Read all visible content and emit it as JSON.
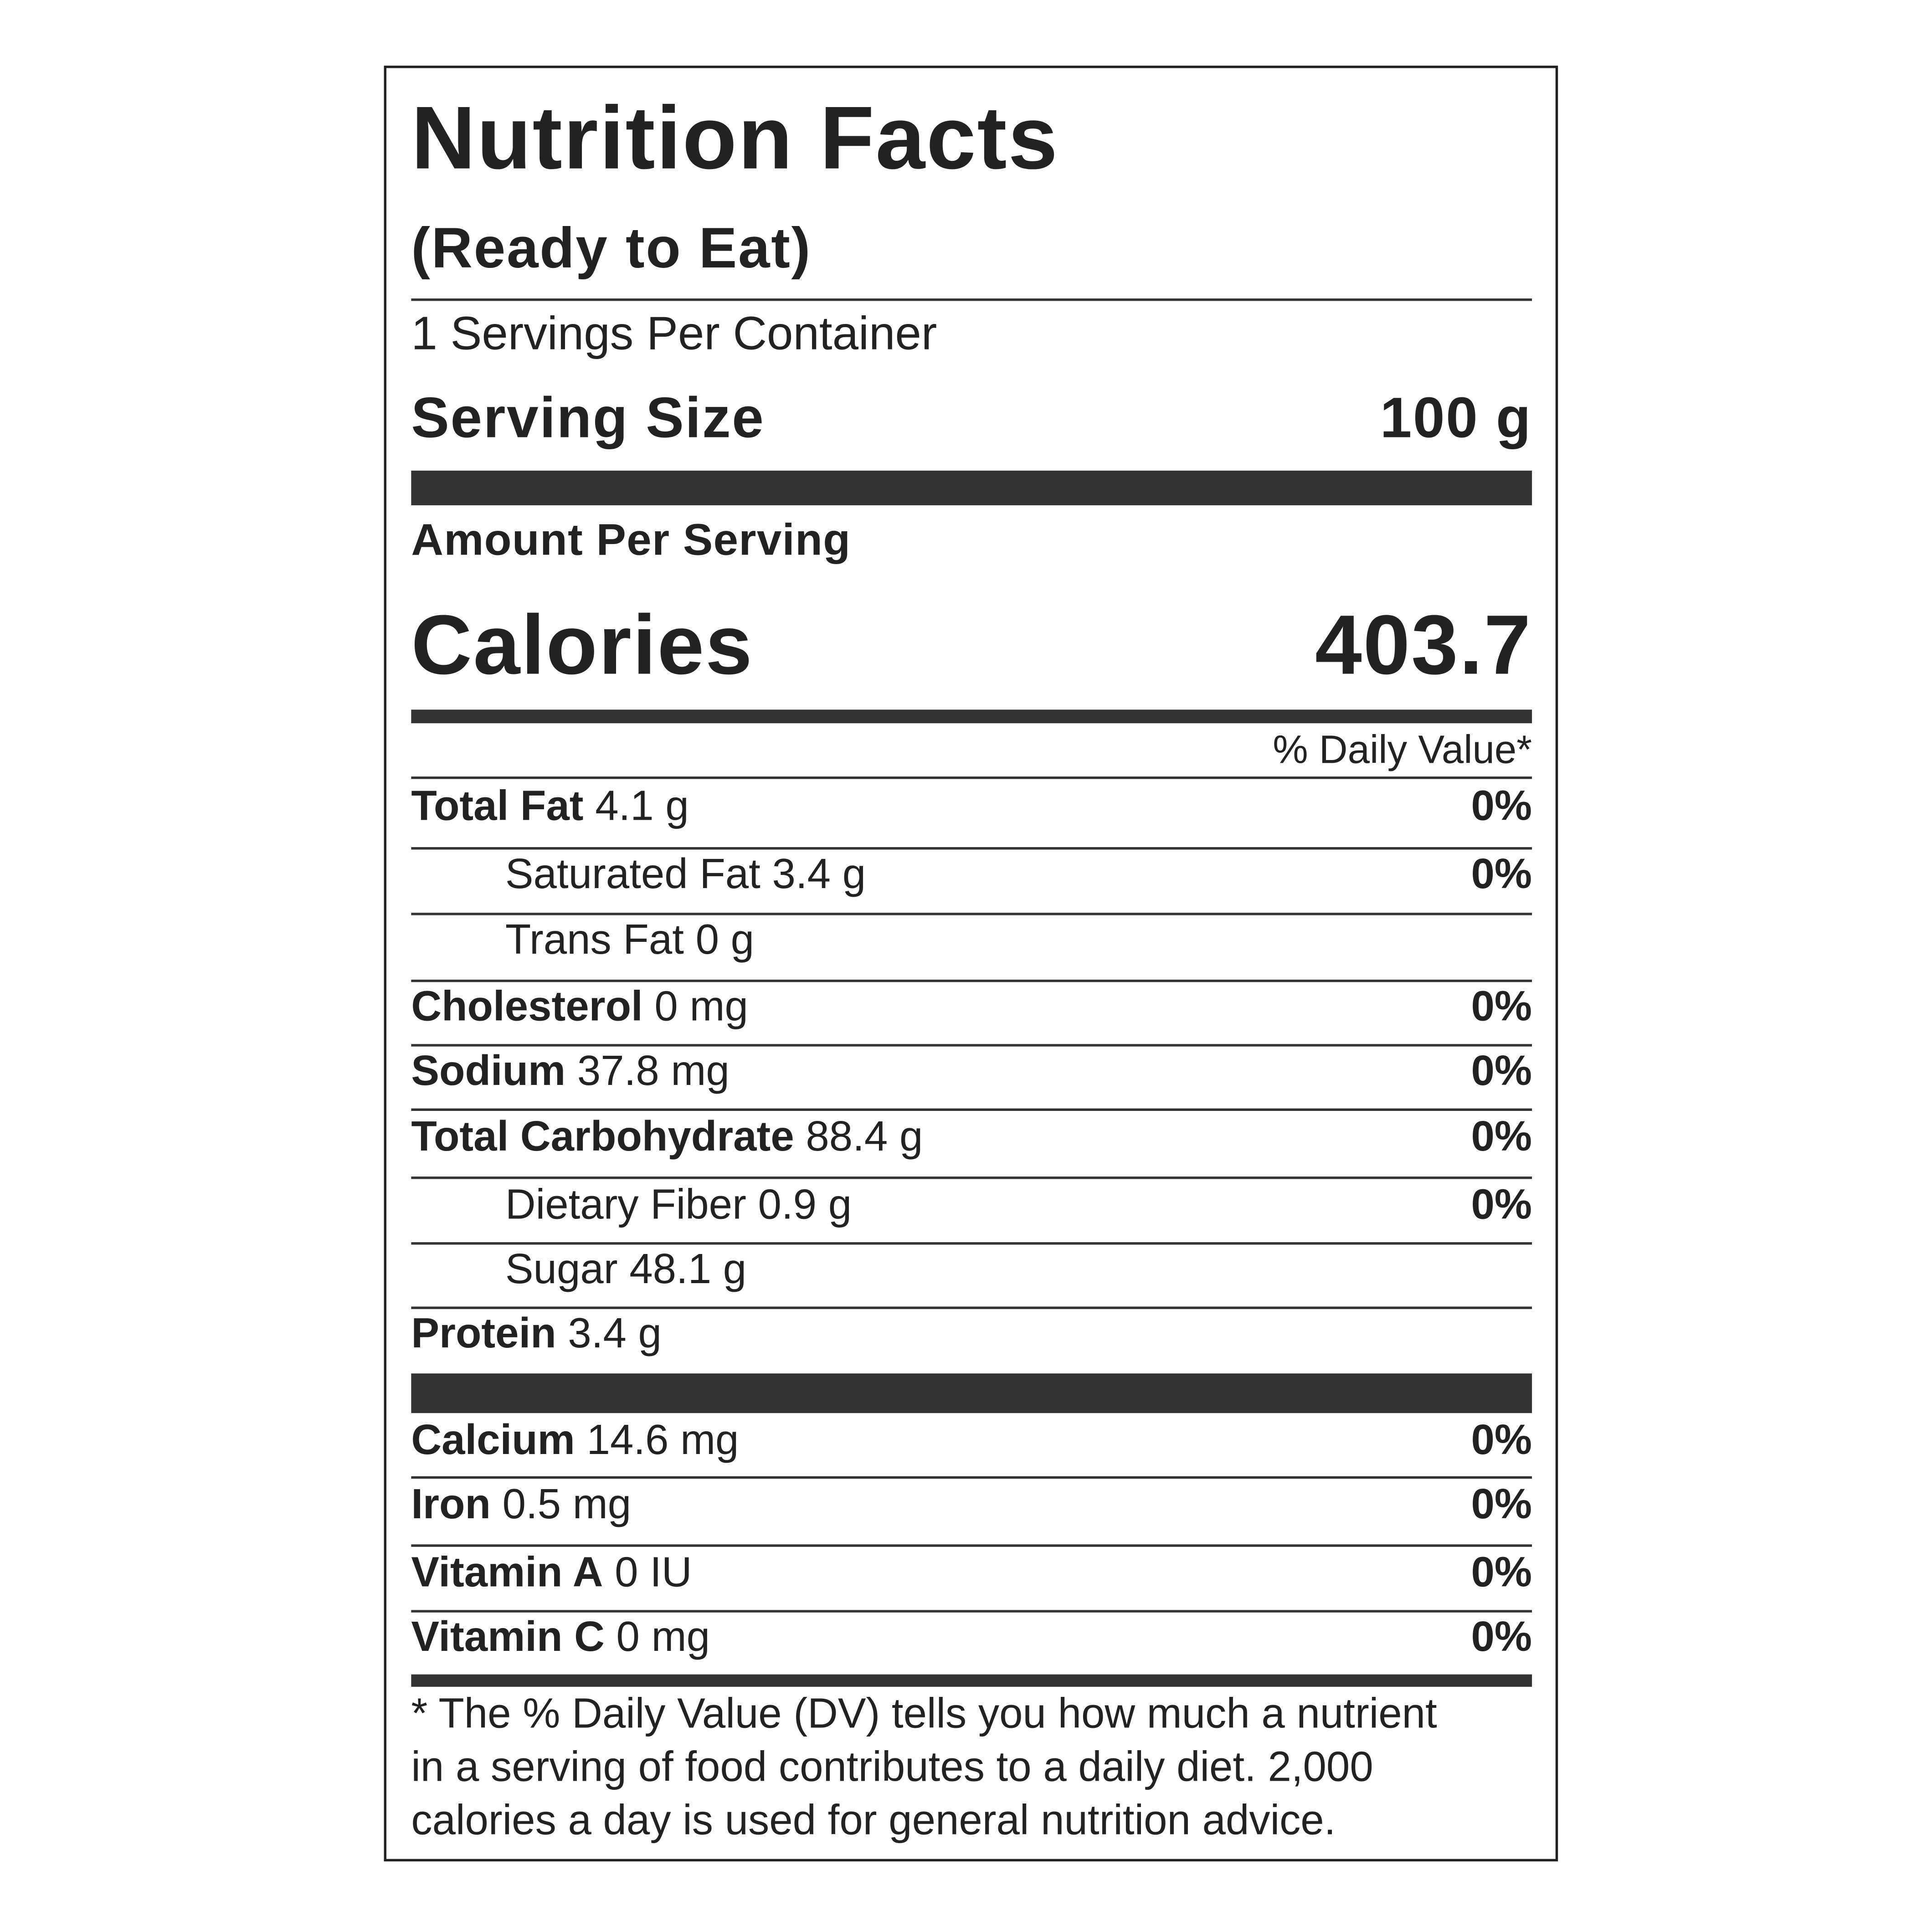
{
  "title": "Nutrition Facts",
  "subtitle": "(Ready to Eat)",
  "servings": "1 Servings Per Container",
  "serving_size": {
    "label": "Serving Size",
    "value": "100 g"
  },
  "amount_per_serving": "Amount Per Serving",
  "calories": {
    "label": "Calories",
    "value": "403.7"
  },
  "daily_value_header": "% Daily Value*",
  "nutrients": [
    {
      "name": "Total Fat",
      "amount": "4.1 g",
      "dv": "0%"
    },
    {
      "name": "Saturated Fat",
      "amount": "3.4 g",
      "dv": "0%",
      "indent": true
    },
    {
      "name": "Trans Fat",
      "amount": "0 g",
      "indent": true
    },
    {
      "name": "Cholesterol",
      "amount": "0 mg",
      "dv": "0%"
    },
    {
      "name": "Sodium",
      "amount": "37.8 mg",
      "dv": "0%"
    },
    {
      "name": "Total Carbohydrate",
      "amount": "88.4 g",
      "dv": "0%"
    },
    {
      "name": "Dietary Fiber",
      "amount": "0.9 g",
      "dv": "0%",
      "indent": true
    },
    {
      "name": "Sugar",
      "amount": "48.1 g",
      "indent": true
    },
    {
      "name": "Protein",
      "amount": "3.4 g"
    }
  ],
  "vitamins": [
    {
      "name": "Calcium",
      "amount": "14.6 mg",
      "dv": "0%"
    },
    {
      "name": "Iron",
      "amount": "0.5 mg",
      "dv": "0%"
    },
    {
      "name": "Vitamin A",
      "amount": "0 IU",
      "dv": "0%"
    },
    {
      "name": "Vitamin C",
      "amount": "0 mg",
      "dv": "0%"
    }
  ],
  "footnote": [
    "* The % Daily Value (DV) tells you how much a nutrient",
    "in a serving of food contributes to a daily diet. 2,000",
    "calories a day is used for general nutrition advice."
  ]
}
